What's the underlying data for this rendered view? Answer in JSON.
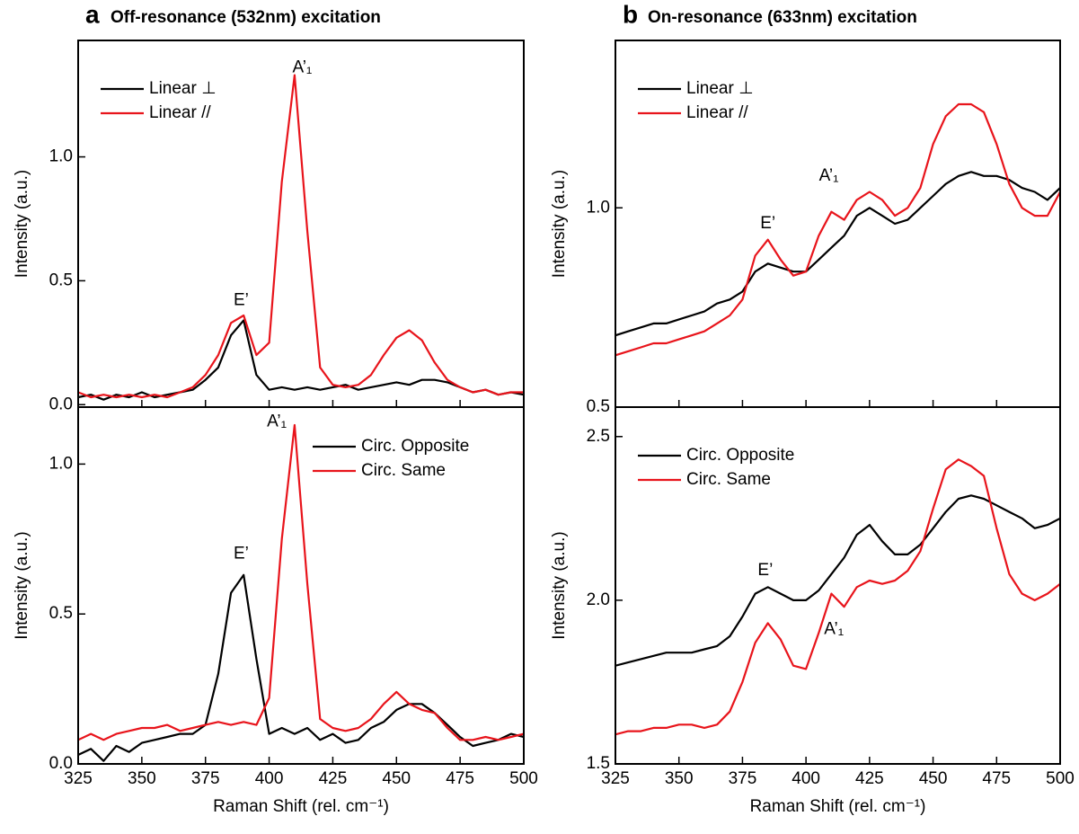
{
  "chart_data": [
    {
      "type": "line",
      "panel_label": "a",
      "title": "Off-resonance (532nm) excitation",
      "y_label": "Intensity (a.u.)",
      "legend": "upper left",
      "annotations": [
        "E’",
        "A’₁"
      ],
      "x": [
        325,
        330,
        335,
        340,
        345,
        350,
        355,
        360,
        365,
        370,
        375,
        380,
        385,
        390,
        395,
        400,
        405,
        410,
        415,
        420,
        425,
        430,
        435,
        440,
        445,
        450,
        455,
        460,
        465,
        470,
        475,
        480,
        485,
        490,
        495,
        500
      ],
      "xlim": [
        325,
        500
      ],
      "xticks": [
        325,
        350,
        375,
        400,
        425,
        450,
        475,
        500
      ],
      "ylim": [
        -0.01,
        1.47
      ],
      "yticks": [
        {
          "value": 0,
          "label": "0.0"
        },
        0.5,
        {
          "value": 1,
          "label": "1.0"
        }
      ],
      "series": [
        {
          "name": "Linear ⊥",
          "color": "#000000",
          "values": [
            0.03,
            0.04,
            0.02,
            0.04,
            0.03,
            0.05,
            0.03,
            0.04,
            0.05,
            0.06,
            0.1,
            0.15,
            0.28,
            0.34,
            0.12,
            0.06,
            0.07,
            0.06,
            0.07,
            0.06,
            0.07,
            0.08,
            0.06,
            0.07,
            0.08,
            0.09,
            0.08,
            0.1,
            0.1,
            0.09,
            0.07,
            0.05,
            0.06,
            0.04,
            0.05,
            0.04
          ]
        },
        {
          "name": "Linear //",
          "color": "#e8141b",
          "values": [
            0.05,
            0.03,
            0.04,
            0.03,
            0.04,
            0.03,
            0.04,
            0.03,
            0.05,
            0.07,
            0.12,
            0.2,
            0.33,
            0.36,
            0.2,
            0.25,
            0.9,
            1.33,
            0.7,
            0.15,
            0.08,
            0.07,
            0.08,
            0.12,
            0.2,
            0.27,
            0.3,
            0.26,
            0.17,
            0.1,
            0.07,
            0.05,
            0.06,
            0.04,
            0.05,
            0.05
          ]
        }
      ]
    },
    {
      "type": "line",
      "y_label": "Intensity (a.u.)",
      "x_label": "Raman Shift (rel. cm⁻¹)",
      "legend": "upper right",
      "annotations": [
        "E’",
        "A’₁"
      ],
      "x": [
        325,
        330,
        335,
        340,
        345,
        350,
        355,
        360,
        365,
        370,
        375,
        380,
        385,
        390,
        395,
        400,
        405,
        410,
        415,
        420,
        425,
        430,
        435,
        440,
        445,
        450,
        455,
        460,
        465,
        470,
        475,
        480,
        485,
        490,
        495,
        500
      ],
      "xlim": [
        325,
        500
      ],
      "xticks": [
        325,
        350,
        375,
        400,
        425,
        450,
        475,
        500
      ],
      "ylim": [
        0,
        1.19
      ],
      "yticks": [
        {
          "value": 0,
          "label": "0.0"
        },
        0.5,
        {
          "value": 1,
          "label": "1.0"
        }
      ],
      "series": [
        {
          "name": "Circ. Opposite",
          "color": "#000000",
          "values": [
            0.03,
            0.05,
            0.01,
            0.06,
            0.04,
            0.07,
            0.08,
            0.09,
            0.1,
            0.1,
            0.13,
            0.3,
            0.57,
            0.63,
            0.35,
            0.1,
            0.12,
            0.1,
            0.12,
            0.08,
            0.1,
            0.07,
            0.08,
            0.12,
            0.14,
            0.18,
            0.2,
            0.2,
            0.17,
            0.13,
            0.09,
            0.06,
            0.07,
            0.08,
            0.1,
            0.09
          ]
        },
        {
          "name": "Circ. Same",
          "color": "#e8141b",
          "values": [
            0.08,
            0.1,
            0.08,
            0.1,
            0.11,
            0.12,
            0.12,
            0.13,
            0.11,
            0.12,
            0.13,
            0.14,
            0.13,
            0.14,
            0.13,
            0.22,
            0.75,
            1.13,
            0.6,
            0.15,
            0.12,
            0.11,
            0.12,
            0.15,
            0.2,
            0.24,
            0.2,
            0.18,
            0.17,
            0.12,
            0.08,
            0.08,
            0.09,
            0.08,
            0.09,
            0.1
          ]
        }
      ]
    },
    {
      "type": "line",
      "panel_label": "b",
      "title": "On-resonance (633nm) excitation",
      "y_label": "Intensity (a.u.)",
      "legend": "upper left",
      "annotations": [
        "E’",
        "A’₁"
      ],
      "x": [
        325,
        330,
        335,
        340,
        345,
        350,
        355,
        360,
        365,
        370,
        375,
        380,
        385,
        390,
        395,
        400,
        405,
        410,
        415,
        420,
        425,
        430,
        435,
        440,
        445,
        450,
        455,
        460,
        465,
        470,
        475,
        480,
        485,
        490,
        495,
        500
      ],
      "xlim": [
        325,
        500
      ],
      "xticks": [
        325,
        350,
        375,
        400,
        425,
        450,
        475,
        500
      ],
      "ylim": [
        0.5,
        1.42
      ],
      "yticks": [
        0.5,
        {
          "value": 1,
          "label": "1.0"
        }
      ],
      "series": [
        {
          "name": "Linear ⊥",
          "color": "#000000",
          "values": [
            0.68,
            0.69,
            0.7,
            0.71,
            0.71,
            0.72,
            0.73,
            0.74,
            0.76,
            0.77,
            0.79,
            0.84,
            0.86,
            0.85,
            0.84,
            0.84,
            0.87,
            0.9,
            0.93,
            0.98,
            1.0,
            0.98,
            0.96,
            0.97,
            1.0,
            1.03,
            1.06,
            1.08,
            1.09,
            1.08,
            1.08,
            1.07,
            1.05,
            1.04,
            1.02,
            1.05
          ]
        },
        {
          "name": "Linear //",
          "color": "#e8141b",
          "values": [
            0.63,
            0.64,
            0.65,
            0.66,
            0.66,
            0.67,
            0.68,
            0.69,
            0.71,
            0.73,
            0.77,
            0.88,
            0.92,
            0.87,
            0.83,
            0.84,
            0.93,
            0.99,
            0.97,
            1.02,
            1.04,
            1.02,
            0.98,
            1.0,
            1.05,
            1.16,
            1.23,
            1.26,
            1.26,
            1.24,
            1.16,
            1.06,
            1.0,
            0.98,
            0.98,
            1.04
          ]
        }
      ]
    },
    {
      "type": "line",
      "y_label": "Intensity (a.u.)",
      "x_label": "Raman Shift (rel. cm⁻¹)",
      "legend": "upper left",
      "annotations": [
        "E’",
        "A’₁"
      ],
      "x": [
        325,
        330,
        335,
        340,
        345,
        350,
        355,
        360,
        365,
        370,
        375,
        380,
        385,
        390,
        395,
        400,
        405,
        410,
        415,
        420,
        425,
        430,
        435,
        440,
        445,
        450,
        455,
        460,
        465,
        470,
        475,
        480,
        485,
        490,
        495,
        500
      ],
      "xlim": [
        325,
        500
      ],
      "xticks": [
        325,
        350,
        375,
        400,
        425,
        450,
        475,
        500
      ],
      "ylim": [
        1.5,
        2.59
      ],
      "yticks": [
        1.5,
        {
          "value": 2,
          "label": "2.0"
        },
        2.5
      ],
      "series": [
        {
          "name": "Circ. Opposite",
          "color": "#000000",
          "values": [
            1.8,
            1.81,
            1.82,
            1.83,
            1.84,
            1.84,
            1.84,
            1.85,
            1.86,
            1.89,
            1.95,
            2.02,
            2.04,
            2.02,
            2.0,
            2.0,
            2.03,
            2.08,
            2.13,
            2.2,
            2.23,
            2.18,
            2.14,
            2.14,
            2.17,
            2.22,
            2.27,
            2.31,
            2.32,
            2.31,
            2.29,
            2.27,
            2.25,
            2.22,
            2.23,
            2.25
          ]
        },
        {
          "name": "Circ. Same",
          "color": "#e8141b",
          "values": [
            1.59,
            1.6,
            1.6,
            1.61,
            1.61,
            1.62,
            1.62,
            1.61,
            1.62,
            1.66,
            1.75,
            1.87,
            1.93,
            1.88,
            1.8,
            1.79,
            1.9,
            2.02,
            1.98,
            2.04,
            2.06,
            2.05,
            2.06,
            2.09,
            2.15,
            2.28,
            2.4,
            2.43,
            2.41,
            2.38,
            2.22,
            2.08,
            2.02,
            2.0,
            2.02,
            2.05
          ]
        }
      ]
    }
  ]
}
